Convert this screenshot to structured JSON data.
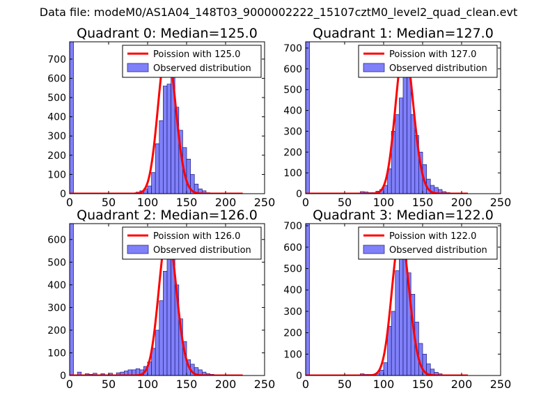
{
  "figure": {
    "suptitle": "Data file: modeM0/AS1A04_148T03_9000002222_15107cztM0_level2_quad_clean.evt"
  },
  "style": {
    "hist_fill": "#8080f8",
    "hist_edge": "#1a1a80",
    "poisson_color": "#ff0000",
    "axis_color": "#000000"
  },
  "chart_data": [
    {
      "type": "bar",
      "title": "Quadrant 0: Median=125.0",
      "xlim": [
        0,
        250
      ],
      "ylim": [
        0,
        790
      ],
      "xticks": [
        0,
        50,
        100,
        150,
        200,
        250
      ],
      "yticks": [
        0,
        100,
        200,
        300,
        400,
        500,
        600,
        700
      ],
      "xlabel": "",
      "ylabel": "",
      "legend": {
        "location": "upper right",
        "entries": [
          "Poission with 125.0",
          "Observed distribution"
        ]
      },
      "hist": {
        "bin_width": 5,
        "bins": [
          [
            0,
            790
          ],
          [
            85,
            8
          ],
          [
            90,
            15
          ],
          [
            95,
            25
          ],
          [
            100,
            40
          ],
          [
            105,
            110
          ],
          [
            110,
            260
          ],
          [
            115,
            380
          ],
          [
            120,
            560
          ],
          [
            125,
            570
          ],
          [
            130,
            760
          ],
          [
            135,
            450
          ],
          [
            140,
            330
          ],
          [
            145,
            240
          ],
          [
            150,
            180
          ],
          [
            155,
            100
          ],
          [
            160,
            50
          ],
          [
            165,
            25
          ],
          [
            170,
            15
          ],
          [
            175,
            5
          ]
        ]
      },
      "poisson": {
        "mean": 125.0,
        "x_range": [
          0,
          222
        ],
        "peak": 760
      }
    },
    {
      "type": "bar",
      "title": "Quadrant 1: Median=127.0",
      "xlim": [
        0,
        250
      ],
      "ylim": [
        0,
        730
      ],
      "xticks": [
        0,
        50,
        100,
        150,
        200,
        250
      ],
      "yticks": [
        0,
        100,
        200,
        300,
        400,
        500,
        600,
        700
      ],
      "xlabel": "",
      "ylabel": "",
      "legend": {
        "location": "upper right",
        "entries": [
          "Poission with 127.0",
          "Observed distribution"
        ]
      },
      "hist": {
        "bin_width": 5,
        "bins": [
          [
            0,
            730
          ],
          [
            70,
            10
          ],
          [
            75,
            8
          ],
          [
            80,
            5
          ],
          [
            85,
            5
          ],
          [
            90,
            12
          ],
          [
            95,
            20
          ],
          [
            100,
            40
          ],
          [
            105,
            120
          ],
          [
            110,
            300
          ],
          [
            115,
            380
          ],
          [
            120,
            460
          ],
          [
            125,
            700
          ],
          [
            130,
            560
          ],
          [
            135,
            380
          ],
          [
            140,
            280
          ],
          [
            145,
            200
          ],
          [
            150,
            140
          ],
          [
            155,
            70
          ],
          [
            160,
            40
          ],
          [
            165,
            30
          ],
          [
            170,
            20
          ],
          [
            175,
            10
          ],
          [
            180,
            5
          ]
        ]
      },
      "poisson": {
        "mean": 127.0,
        "x_range": [
          0,
          208
        ],
        "peak": 710
      }
    },
    {
      "type": "bar",
      "title": "Quadrant 2: Median=126.0",
      "xlim": [
        0,
        250
      ],
      "ylim": [
        0,
        670
      ],
      "xticks": [
        0,
        50,
        100,
        150,
        200,
        250
      ],
      "yticks": [
        0,
        100,
        200,
        300,
        400,
        500,
        600
      ],
      "xlabel": "",
      "ylabel": "",
      "legend": {
        "location": "upper right",
        "entries": [
          "Poission with 126.0",
          "Observed distribution"
        ]
      },
      "hist": {
        "bin_width": 5,
        "bins": [
          [
            0,
            670
          ],
          [
            10,
            15
          ],
          [
            20,
            8
          ],
          [
            25,
            5
          ],
          [
            30,
            10
          ],
          [
            40,
            8
          ],
          [
            50,
            10
          ],
          [
            60,
            12
          ],
          [
            65,
            15
          ],
          [
            70,
            20
          ],
          [
            75,
            25
          ],
          [
            80,
            25
          ],
          [
            85,
            30
          ],
          [
            90,
            25
          ],
          [
            95,
            40
          ],
          [
            100,
            60
          ],
          [
            105,
            120
          ],
          [
            110,
            200
          ],
          [
            115,
            330
          ],
          [
            120,
            460
          ],
          [
            125,
            640
          ],
          [
            130,
            600
          ],
          [
            135,
            400
          ],
          [
            140,
            250
          ],
          [
            145,
            150
          ],
          [
            150,
            70
          ],
          [
            155,
            50
          ],
          [
            160,
            35
          ],
          [
            165,
            25
          ],
          [
            170,
            15
          ],
          [
            175,
            8
          ],
          [
            180,
            5
          ]
        ]
      },
      "poisson": {
        "mean": 126.0,
        "x_range": [
          0,
          222
        ],
        "peak": 630
      }
    },
    {
      "type": "bar",
      "title": "Quadrant 3: Median=122.0",
      "xlim": [
        0,
        250
      ],
      "ylim": [
        0,
        710
      ],
      "xticks": [
        0,
        50,
        100,
        150,
        200,
        250
      ],
      "yticks": [
        0,
        100,
        200,
        300,
        400,
        500,
        600,
        700
      ],
      "xlabel": "",
      "ylabel": "",
      "legend": {
        "location": "upper right",
        "entries": [
          "Poission with 122.0",
          "Observed distribution"
        ]
      },
      "hist": {
        "bin_width": 5,
        "bins": [
          [
            0,
            710
          ],
          [
            70,
            8
          ],
          [
            75,
            5
          ],
          [
            80,
            5
          ],
          [
            85,
            5
          ],
          [
            90,
            10
          ],
          [
            95,
            25
          ],
          [
            100,
            60
          ],
          [
            105,
            230
          ],
          [
            110,
            300
          ],
          [
            115,
            490
          ],
          [
            120,
            660
          ],
          [
            125,
            630
          ],
          [
            130,
            480
          ],
          [
            135,
            380
          ],
          [
            140,
            250
          ],
          [
            145,
            150
          ],
          [
            150,
            100
          ],
          [
            155,
            55
          ],
          [
            160,
            30
          ],
          [
            165,
            15
          ],
          [
            170,
            8
          ]
        ]
      },
      "poisson": {
        "mean": 122.0,
        "x_range": [
          0,
          208
        ],
        "peak": 660
      }
    }
  ]
}
